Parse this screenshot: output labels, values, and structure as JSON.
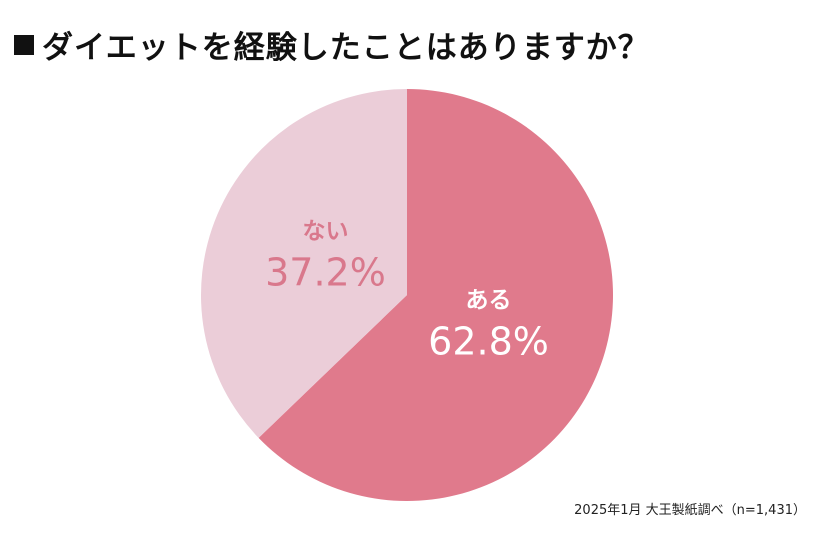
{
  "title": "ダイエットを経験したことはありますか？",
  "source": "2025年1月 大王製紙調べ（n=1,431）",
  "colors": {
    "aru": "#e07a8c",
    "nai": "#ebcdd8",
    "aru_label": "#ffffff",
    "nai_label": "#d9788c"
  },
  "chart_data": {
    "type": "pie",
    "slices": [
      {
        "label": "ある",
        "value": 62.8,
        "value_label": "62.8%"
      },
      {
        "label": "ない",
        "value": 37.2,
        "value_label": "37.2%"
      }
    ]
  }
}
